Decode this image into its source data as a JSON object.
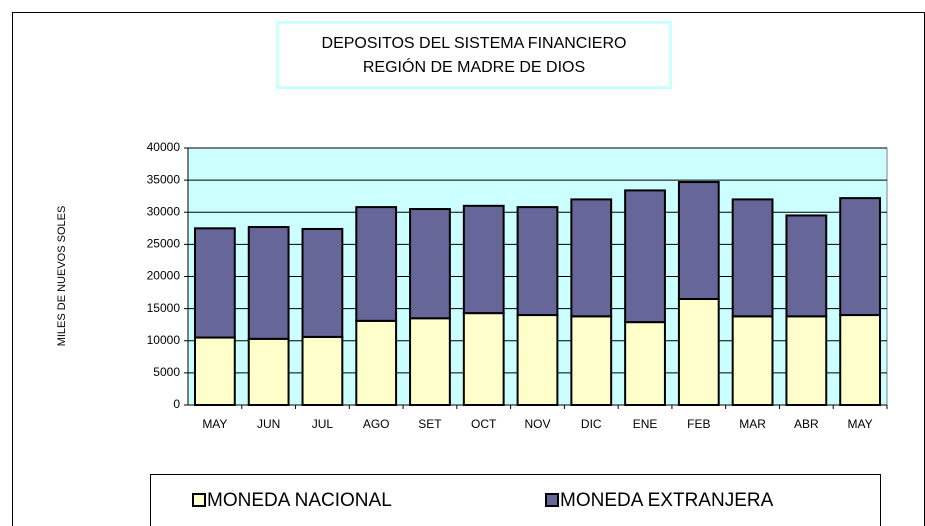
{
  "chart_data": {
    "type": "stacked_bar",
    "title": [
      "DEPOSITOS DEL SISTEMA FINANCIERO",
      "REGIÓN DE MADRE DE DIOS"
    ],
    "y_label": "MILES DE NUEVOS SOLES",
    "categories": [
      "MAY",
      "JUN",
      "JUL",
      "AGO",
      "SET",
      "OCT",
      "NOV",
      "DIC",
      "ENE",
      "FEB",
      "MAR",
      "ABR",
      "MAY"
    ],
    "series": [
      {
        "name": "MONEDA NACIONAL",
        "color": "#ffffcc",
        "values": [
          10500,
          10300,
          10600,
          13100,
          13500,
          14300,
          14000,
          13800,
          12900,
          16500,
          13800,
          13800,
          14000
        ]
      },
      {
        "name": "MONEDA EXTRANJERA",
        "color": "#666699",
        "values": [
          17000,
          17400,
          16800,
          17700,
          17000,
          16700,
          16800,
          18200,
          20500,
          18200,
          18200,
          15700,
          18200
        ]
      }
    ],
    "ylim": [
      0,
      40000
    ],
    "yticks": [
      0,
      5000,
      10000,
      15000,
      20000,
      25000,
      30000,
      35000,
      40000
    ],
    "grid": true,
    "plot_background": "#ccffff",
    "legend": "bottom"
  }
}
